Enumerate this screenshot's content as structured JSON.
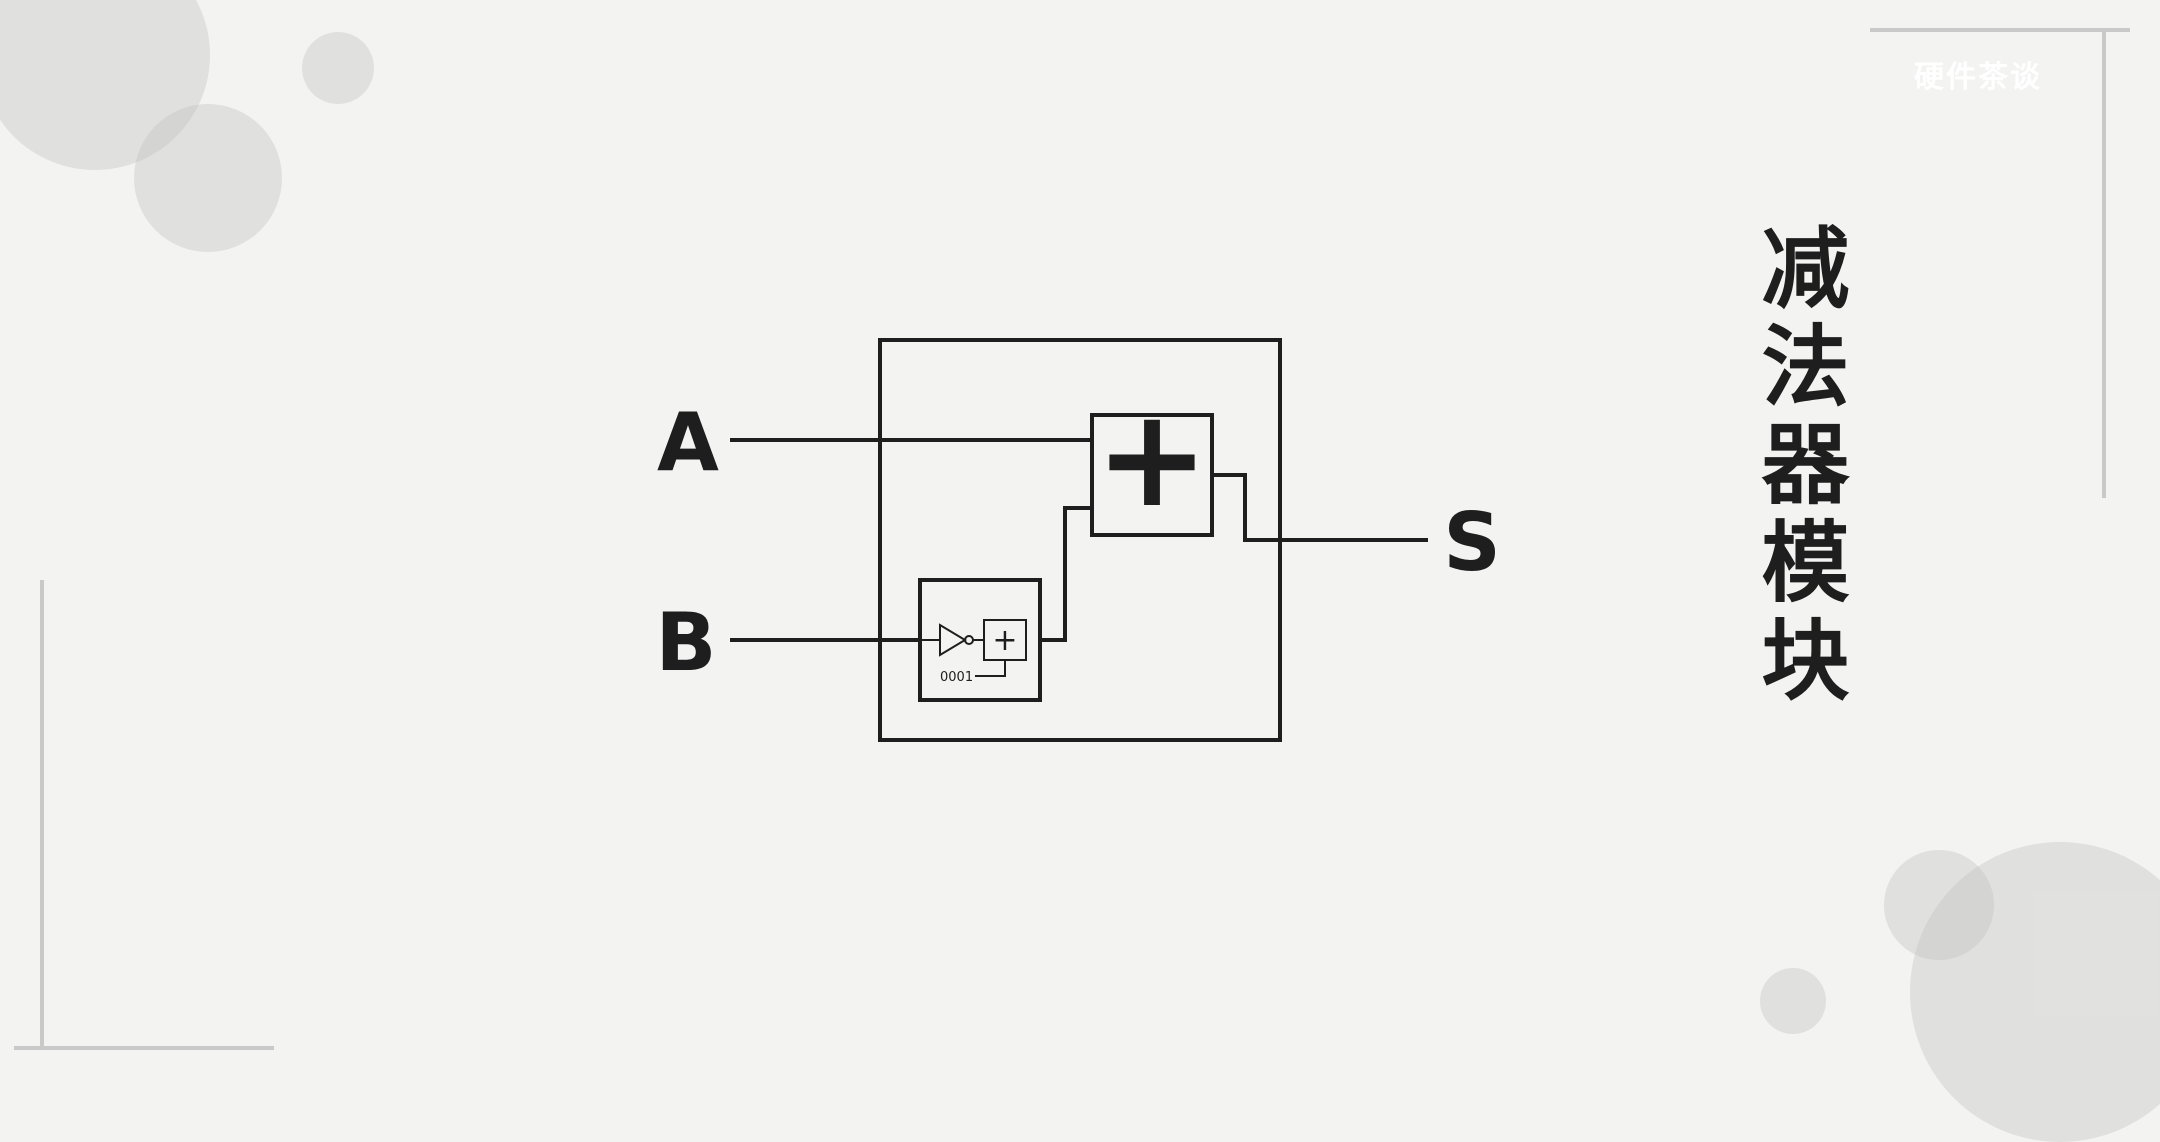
{
  "watermark": "硬件茶谈",
  "title": "减法器模块",
  "diagram": {
    "inputs": [
      "A",
      "B"
    ],
    "output": "S",
    "adder_symbol": "+",
    "inner_adder_symbol": "+",
    "constant": "0001"
  },
  "colors": {
    "background": "#f3f3f2",
    "ink": "#1e1e1e"
  }
}
